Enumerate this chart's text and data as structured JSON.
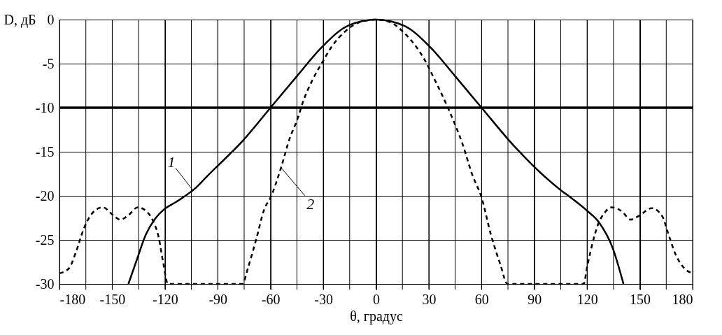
{
  "chart_data": {
    "type": "line",
    "xlabel": "θ, градус",
    "ylabel": "D, дБ",
    "xlim": [
      -180,
      180
    ],
    "ylim": [
      -30,
      0
    ],
    "xticks": [
      -180,
      {
        "value": -165,
        "label": null
      },
      -150,
      {
        "value": -135,
        "label": null
      },
      -120,
      {
        "value": -105,
        "label": null
      },
      -90,
      {
        "value": -75,
        "label": null
      },
      -60,
      {
        "value": -45,
        "label": null
      },
      -30,
      {
        "value": -15,
        "label": null
      },
      0,
      {
        "value": 15,
        "label": null
      },
      30,
      {
        "value": 45,
        "label": null
      },
      60,
      {
        "value": 75,
        "label": null
      },
      90,
      {
        "value": 105,
        "label": null
      },
      120,
      {
        "value": 135,
        "label": null
      },
      150,
      {
        "value": 165,
        "label": null
      },
      180
    ],
    "yticks": [
      -30,
      -25,
      -20,
      -15,
      -10,
      -5,
      0
    ],
    "grid": true,
    "series": [
      {
        "color": "#000000",
        "line_style": "solid",
        "x": [
          -140.8,
          -136.1,
          -130.9,
          -125.6,
          -120.3,
          -113.7,
          -108.4,
          -103.1,
          -95.2,
          -76,
          -60,
          -45.3,
          -30.7,
          -16,
          0,
          16,
          30.7,
          45.3,
          60,
          78.7,
          94.7,
          105.3,
          110.7,
          120,
          126.7,
          134.7,
          140.7
        ],
        "values": [
          -30,
          -27.3,
          -24.4,
          -22.6,
          -21.5,
          -20.7,
          -20,
          -19.2,
          -17.6,
          -13.8,
          -10,
          -6.5,
          -3.1,
          -0.7,
          0,
          -0.7,
          -3.1,
          -6.5,
          -10,
          -14.4,
          -17.6,
          -19.4,
          -20.2,
          -21.7,
          -23,
          -26,
          -30
        ]
      },
      {
        "color": "#000000",
        "line_style": "dashed",
        "x": [
          -180,
          -174.5,
          -170.5,
          -165.9,
          -160,
          -155.3,
          -150,
          -145.4,
          -140.8,
          -135.5,
          -130.9,
          -126.9,
          -123.6,
          -121,
          -118.3,
          -76,
          -72.7,
          -68.1,
          -63.5,
          -60,
          -54,
          -49.3,
          -44.7,
          -41.3,
          -36,
          -30.7,
          -25.3,
          -17.3,
          -9.3,
          0,
          8,
          16,
          28,
          33.3,
          41.3,
          49.3,
          54.7,
          60,
          65.3,
          70.7,
          74.7,
          118,
          120,
          123.3,
          126.7,
          129.3,
          134,
          140,
          144.7,
          149.3,
          156.7,
          162.7,
          166,
          170,
          174.7,
          180
        ],
        "values": [
          -28.8,
          -28.2,
          -26.3,
          -23.6,
          -21.7,
          -21.3,
          -22.1,
          -22.7,
          -22.2,
          -21.3,
          -21.7,
          -22.8,
          -24.7,
          -27.6,
          -30,
          -30,
          -28.1,
          -24.9,
          -21.5,
          -20.2,
          -16.8,
          -13.6,
          -11.3,
          -9.2,
          -6.8,
          -4.9,
          -3.1,
          -1.3,
          -0.3,
          0,
          -0.3,
          -1.5,
          -4.7,
          -6.8,
          -10.2,
          -14.2,
          -17.6,
          -20.2,
          -24.4,
          -27.8,
          -30,
          -30,
          -28.1,
          -25.2,
          -23,
          -22.1,
          -21.3,
          -21.8,
          -22.7,
          -22.3,
          -21.4,
          -22.3,
          -24.2,
          -26.5,
          -28.1,
          -28.8
        ]
      }
    ],
    "ref_lines": [
      {
        "axis": "y",
        "value": -10,
        "color": "#000000",
        "line_style": "solid"
      }
    ],
    "annotations": [
      {
        "text": "1",
        "x": -104,
        "y": -19.4
      },
      {
        "text": "2",
        "x": -54,
        "y": -16.8
      }
    ]
  }
}
